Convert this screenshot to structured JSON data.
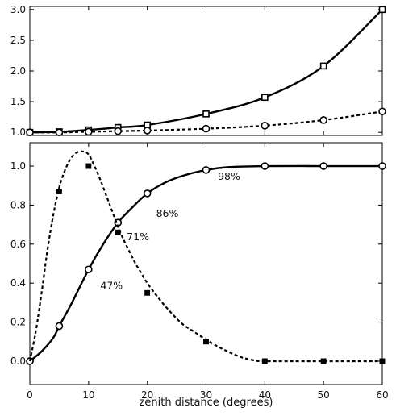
{
  "chart_data": [
    {
      "type": "line",
      "panel": "top",
      "xlim": [
        0,
        60
      ],
      "ylim": [
        0.95,
        3.05
      ],
      "yticks": [
        1.0,
        1.5,
        2.0,
        2.5,
        3.0
      ],
      "ytick_labels": [
        "1.0",
        "1.5",
        "2.0",
        "2.5",
        "3.0"
      ],
      "grid": false,
      "series": [
        {
          "style": "solid",
          "marker": "square-open",
          "x": [
            0,
            5,
            10,
            15,
            20,
            30,
            40,
            50,
            60
          ],
          "y": [
            1.0,
            1.01,
            1.04,
            1.08,
            1.12,
            1.3,
            1.57,
            2.08,
            3.0
          ]
        },
        {
          "style": "dashed",
          "marker": "circle-open",
          "x": [
            0,
            5,
            10,
            15,
            20,
            30,
            40,
            50,
            60
          ],
          "y": [
            1.0,
            1.0,
            1.01,
            1.02,
            1.03,
            1.06,
            1.11,
            1.2,
            1.34
          ]
        }
      ]
    },
    {
      "type": "line",
      "panel": "bottom",
      "xlim": [
        0,
        60
      ],
      "ylim": [
        -0.12,
        1.12
      ],
      "xlabel": "zenith distance (degrees)",
      "xticks": [
        0,
        10,
        20,
        30,
        40,
        50,
        60
      ],
      "xtick_labels": [
        "0",
        "10",
        "20",
        "30",
        "40",
        "50",
        "60"
      ],
      "yticks": [
        0.0,
        0.2,
        0.4,
        0.6,
        0.8,
        1.0
      ],
      "ytick_labels": [
        "0.0",
        "0.2",
        "0.4",
        "0.6",
        "0.8",
        "1.0"
      ],
      "grid": false,
      "series": [
        {
          "style": "solid",
          "marker": "circle-open",
          "x": [
            0,
            5,
            10,
            15,
            20,
            30,
            40,
            50,
            60
          ],
          "y": [
            0.0,
            0.18,
            0.47,
            0.71,
            0.86,
            0.98,
            1.0,
            1.0,
            1.0
          ],
          "curve": [
            [
              0,
              0.0
            ],
            [
              2,
              0.05
            ],
            [
              4,
              0.12
            ],
            [
              5,
              0.18
            ],
            [
              7,
              0.29
            ],
            [
              10,
              0.47
            ],
            [
              12.5,
              0.6
            ],
            [
              15,
              0.71
            ],
            [
              17.5,
              0.79
            ],
            [
              20,
              0.86
            ],
            [
              23,
              0.915
            ],
            [
              26,
              0.95
            ],
            [
              30,
              0.98
            ],
            [
              34,
              0.995
            ],
            [
              40,
              1.0
            ],
            [
              50,
              1.0
            ],
            [
              60,
              1.0
            ]
          ]
        },
        {
          "style": "dashed",
          "marker": "square-filled",
          "x": [
            5,
            10,
            15,
            20,
            30,
            40,
            50,
            60
          ],
          "y": [
            0.87,
            1.0,
            0.66,
            0.35,
            0.1,
            0.0,
            0.0,
            0.0
          ],
          "curve": [
            [
              0,
              0.0
            ],
            [
              1,
              0.15
            ],
            [
              2,
              0.35
            ],
            [
              3,
              0.57
            ],
            [
              4,
              0.75
            ],
            [
              5,
              0.89
            ],
            [
              6,
              0.98
            ],
            [
              7,
              1.04
            ],
            [
              8,
              1.07
            ],
            [
              9,
              1.075
            ],
            [
              10,
              1.06
            ],
            [
              11,
              1.0
            ],
            [
              12,
              0.93
            ],
            [
              13,
              0.85
            ],
            [
              14,
              0.77
            ],
            [
              15,
              0.69
            ],
            [
              16,
              0.62
            ],
            [
              17,
              0.56
            ],
            [
              18,
              0.5
            ],
            [
              19,
              0.45
            ],
            [
              20,
              0.4
            ],
            [
              22,
              0.32
            ],
            [
              24,
              0.25
            ],
            [
              26,
              0.19
            ],
            [
              28,
              0.15
            ],
            [
              30,
              0.11
            ],
            [
              32,
              0.075
            ],
            [
              34,
              0.045
            ],
            [
              36,
              0.02
            ],
            [
              38,
              0.005
            ],
            [
              40,
              0.0
            ],
            [
              50,
              0.0
            ],
            [
              60,
              0.0
            ]
          ]
        }
      ],
      "annotations": [
        {
          "text": "47%",
          "x": 12,
          "y": 0.37
        },
        {
          "text": "71%",
          "x": 16.5,
          "y": 0.62
        },
        {
          "text": "86%",
          "x": 21.5,
          "y": 0.74
        },
        {
          "text": "98%",
          "x": 32,
          "y": 0.93
        }
      ]
    }
  ]
}
